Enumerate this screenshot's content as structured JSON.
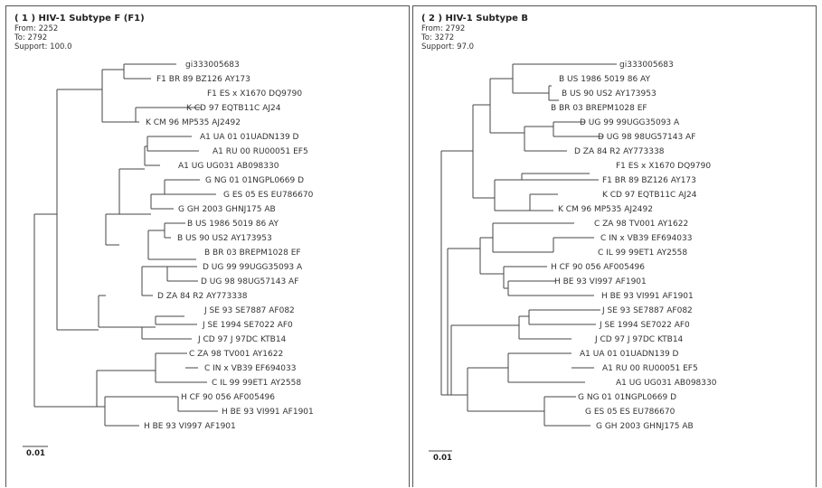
{
  "panels": [
    {
      "title": "( 1 ) HIV-1 Subtype F (F1)",
      "from": "From: 2252",
      "to": "To: 2792",
      "support": "Support: 100.0",
      "scale_label": "0.01",
      "leaves": [
        "gi333005683",
        "F1 BR 89 BZ126 AY173",
        "F1 ES x X1670 DQ9790",
        "K CD 97 EQTB11C AJ24",
        "K CM 96 MP535 AJ2492",
        "A1 UA 01 01UADN139 D",
        "A1 RU 00 RU00051 EF5",
        "A1 UG UG031 AB098330",
        "G NG 01 01NGPL0669 D",
        "G ES 05 ES EU786670",
        "G GH 2003 GHNJ175 AB",
        "B US 1986 5019 86 AY",
        "B US 90 US2 AY173953",
        "B BR 03 BREPM1028 EF",
        "D UG 99 99UGG35093 A",
        "D UG 98 98UG57143 AF",
        "D ZA 84 R2 AY773338",
        "J SE 93 SE7887 AF082",
        "J SE 1994 SE7022 AF0",
        "J CD 97 J 97DC KTB14",
        "C ZA 98 TV001 AY1622",
        "C IN x VB39 EF694033",
        "C IL 99 99ET1 AY2558",
        "H CF 90 056 AF005496",
        "H BE 93 VI991 AF1901",
        "H BE 93 VI997 AF1901"
      ]
    },
    {
      "title": "( 2 ) HIV-1 Subtype B",
      "from": "From: 2792",
      "to": "To: 3272",
      "support": "Support: 97.0",
      "scale_label": "0.01",
      "leaves": [
        "gi333005683",
        "B US 1986 5019 86 AY",
        "B US 90 US2 AY173953",
        "B BR 03 BREPM1028 EF",
        "D UG 99 99UGG35093 A",
        "D UG 98 98UG57143 AF",
        "D ZA 84 R2 AY773338",
        "F1 ES x X1670 DQ9790",
        "F1 BR 89 BZ126 AY173",
        "K CD 97 EQTB11C AJ24",
        "K CM 96 MP535 AJ2492",
        "C ZA 98 TV001 AY1622",
        "C IN x VB39 EF694033",
        "C IL 99 99ET1 AY2558",
        "H CF 90 056 AF005496",
        "H BE 93 VI997 AF1901",
        "H BE 93 VI991 AF1901",
        "J SE 93 SE7887 AF082",
        "J SE 1994 SE7022 AF0",
        "J CD 97 J 97DC KTB14",
        "A1 UA 01 01UADN139 D",
        "A1 RU 00 RU00051 EF5",
        "A1 UG UG031 AB098330",
        "G NG 01 01NGPL0669 D",
        "G ES 05 ES EU786670",
        "G GH 2003 GHNJ175 AB"
      ]
    }
  ]
}
